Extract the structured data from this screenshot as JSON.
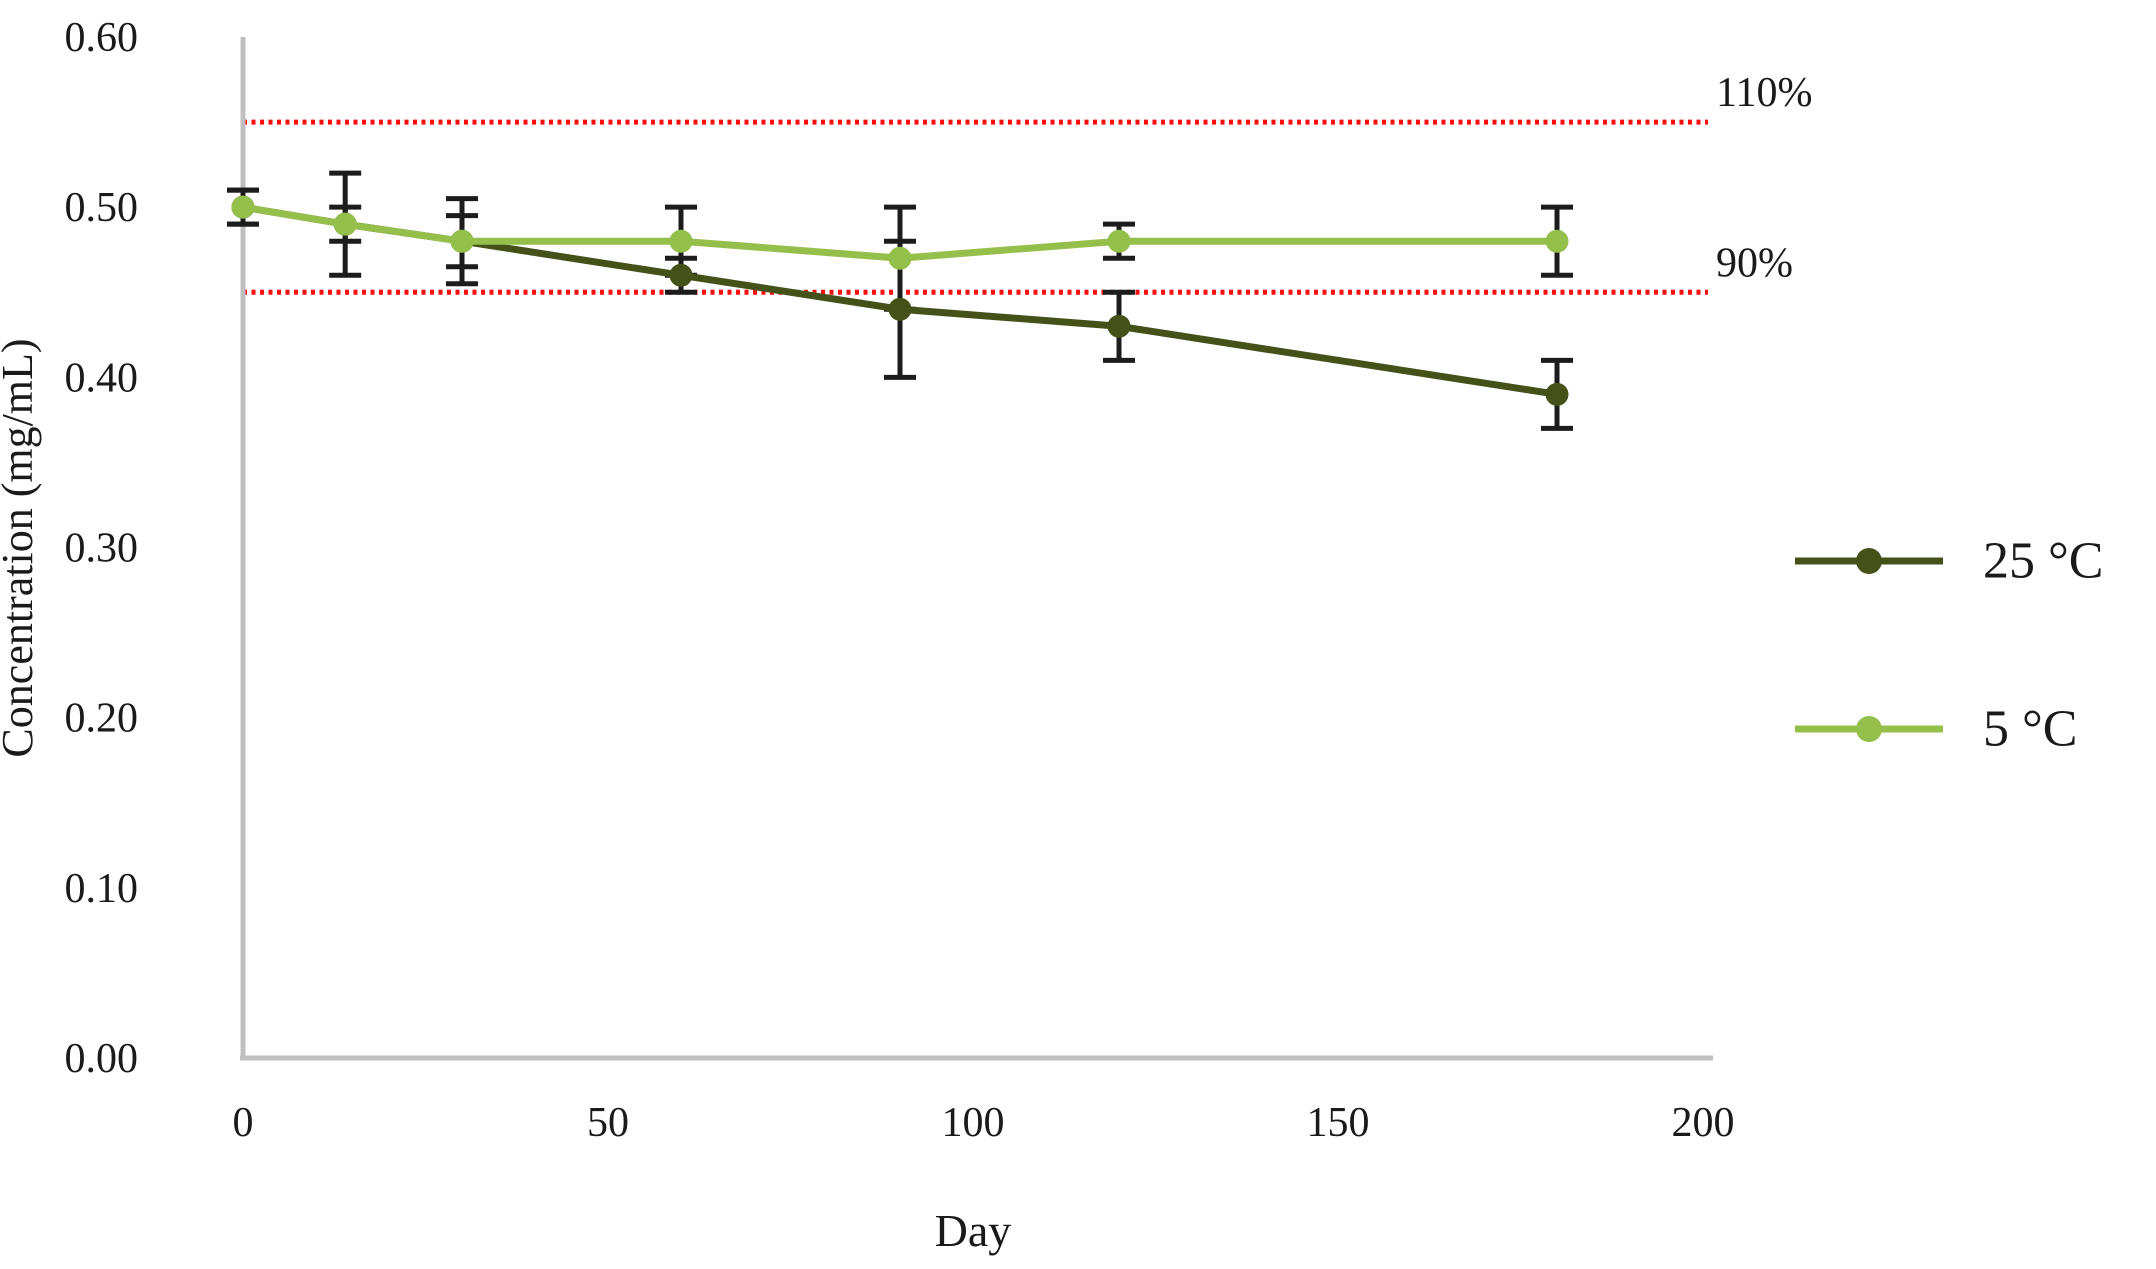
{
  "chart_data": {
    "type": "line",
    "title": "",
    "xlabel": "Day",
    "ylabel": "Concentration (mg/mL)",
    "xlim": [
      0,
      200
    ],
    "ylim": [
      0.0,
      0.6
    ],
    "x_ticks": [
      0,
      50,
      100,
      150,
      200
    ],
    "y_ticks": [
      "0.00",
      "0.10",
      "0.20",
      "0.30",
      "0.40",
      "0.50",
      "0.60"
    ],
    "grid": false,
    "legend_position": "right",
    "x": [
      0,
      14,
      30,
      60,
      90,
      120,
      180
    ],
    "series": [
      {
        "name": "25 °C",
        "color": "#44521a",
        "values": [
          0.5,
          0.49,
          0.48,
          0.46,
          0.44,
          0.43,
          0.39
        ],
        "errors": [
          0.01,
          0.03,
          0.025,
          0.01,
          0.04,
          0.02,
          0.02
        ]
      },
      {
        "name": "5 °C",
        "color": "#94bf4a",
        "values": [
          0.5,
          0.49,
          0.48,
          0.48,
          0.47,
          0.48,
          0.48
        ],
        "errors": [
          0.01,
          0.01,
          0.015,
          0.02,
          0.03,
          0.01,
          0.02
        ]
      }
    ],
    "reference_lines": [
      {
        "label": "110%",
        "value": 0.55,
        "color": "#ff0d0d",
        "style": "dotted"
      },
      {
        "label": "90%",
        "value": 0.45,
        "color": "#ff0d0d",
        "style": "dotted"
      }
    ],
    "colors": {
      "axis": "#bfbfbf",
      "error_bar": "#1c1c1c",
      "text": "#1a1a1a",
      "reference": "#ff0d0d"
    }
  }
}
